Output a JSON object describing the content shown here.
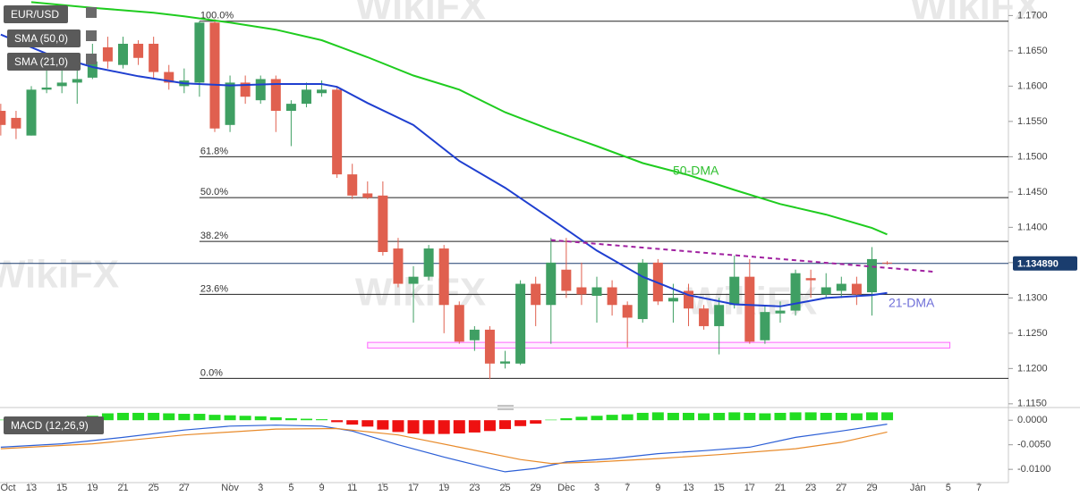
{
  "chart_data": [
    {
      "type": "candlestick",
      "name": "EUR/USD",
      "watermark": "WikiFX",
      "up_color": "#3f9f63",
      "down_color": "#e0604f",
      "x": [
        -2,
        -1,
        0,
        1,
        2,
        3,
        4,
        5,
        6,
        7,
        8,
        9,
        10,
        11,
        12,
        13,
        14,
        15,
        16,
        17,
        18,
        19,
        20,
        21,
        22,
        23,
        24,
        25,
        26,
        27,
        28,
        29,
        30,
        31,
        32,
        33,
        34,
        35,
        36,
        37,
        38,
        39,
        40,
        41,
        42,
        43,
        44,
        45,
        46,
        47,
        48,
        49,
        50,
        51,
        52,
        53,
        54,
        55,
        56
      ],
      "open": [
        1.1565,
        1.1555,
        1.153,
        1.1595,
        1.16,
        1.1605,
        1.1612,
        1.1655,
        1.163,
        1.166,
        1.166,
        1.162,
        1.16,
        1.1605,
        1.169,
        1.1545,
        1.1605,
        1.158,
        1.161,
        1.1565,
        1.1575,
        1.159,
        1.1595,
        1.1475,
        1.1448,
        1.1445,
        1.137,
        1.132,
        1.133,
        1.137,
        1.129,
        1.124,
        1.1255,
        1.1207,
        1.1207,
        1.132,
        1.129,
        1.134,
        1.1315,
        1.1303,
        1.1315,
        1.129,
        1.127,
        1.135,
        1.1295,
        1.131,
        1.1285,
        1.126,
        1.129,
        1.133,
        1.124,
        1.1278,
        1.1282,
        1.1328,
        1.1305,
        1.131,
        1.132,
        1.1308,
        1.135
      ],
      "high": [
        1.1575,
        1.1565,
        1.16,
        1.1625,
        1.1625,
        1.1625,
        1.166,
        1.167,
        1.167,
        1.1665,
        1.167,
        1.163,
        1.1625,
        1.1692,
        1.1695,
        1.1615,
        1.1615,
        1.1615,
        1.1615,
        1.158,
        1.1605,
        1.1608,
        1.16,
        1.149,
        1.1465,
        1.1465,
        1.1385,
        1.1345,
        1.1375,
        1.1375,
        1.1295,
        1.126,
        1.126,
        1.1225,
        1.1325,
        1.133,
        1.1385,
        1.1385,
        1.135,
        1.133,
        1.1325,
        1.1295,
        1.1355,
        1.1355,
        1.132,
        1.132,
        1.129,
        1.13,
        1.136,
        1.1355,
        1.129,
        1.1295,
        1.134,
        1.134,
        1.1335,
        1.133,
        1.133,
        1.1372,
        1.1352
      ],
      "low": [
        1.153,
        1.1525,
        1.153,
        1.159,
        1.159,
        1.1575,
        1.161,
        1.1625,
        1.1625,
        1.163,
        1.161,
        1.1595,
        1.159,
        1.1585,
        1.1535,
        1.1535,
        1.1575,
        1.1575,
        1.1535,
        1.1515,
        1.157,
        1.1585,
        1.147,
        1.144,
        1.144,
        1.136,
        1.1315,
        1.1265,
        1.1325,
        1.125,
        1.1235,
        1.1225,
        1.1185,
        1.12,
        1.1205,
        1.126,
        1.1235,
        1.13,
        1.129,
        1.1265,
        1.1275,
        1.123,
        1.1265,
        1.129,
        1.1265,
        1.126,
        1.1255,
        1.122,
        1.1285,
        1.1235,
        1.1235,
        1.1265,
        1.1275,
        1.13,
        1.13,
        1.13,
        1.129,
        1.1275,
        1.1347
      ],
      "close": [
        1.1545,
        1.154,
        1.1595,
        1.1598,
        1.1605,
        1.161,
        1.1635,
        1.1635,
        1.166,
        1.164,
        1.162,
        1.1605,
        1.1608,
        1.169,
        1.154,
        1.1605,
        1.1585,
        1.161,
        1.1565,
        1.1575,
        1.1595,
        1.1595,
        1.1475,
        1.1445,
        1.1442,
        1.1365,
        1.132,
        1.133,
        1.137,
        1.129,
        1.1238,
        1.1255,
        1.1207,
        1.121,
        1.132,
        1.129,
        1.135,
        1.131,
        1.1305,
        1.1315,
        1.129,
        1.1272,
        1.135,
        1.1295,
        1.13,
        1.1285,
        1.126,
        1.129,
        1.133,
        1.1238,
        1.128,
        1.1282,
        1.1335,
        1.1325,
        1.1315,
        1.132,
        1.1305,
        1.1355,
        1.1349
      ],
      "lines": [
        {
          "name": "SMA (50,0)",
          "color": "#1fcc1f",
          "x": [
            0,
            4,
            8,
            10,
            13,
            16,
            19,
            22,
            25,
            28,
            31,
            34,
            37,
            40,
            43,
            46,
            49,
            52,
            55,
            56
          ],
          "values": [
            1.1719,
            1.1711,
            1.1704,
            1.1699,
            1.169,
            1.168,
            1.1665,
            1.1641,
            1.1615,
            1.1595,
            1.1563,
            1.1538,
            1.1515,
            1.1491,
            1.1474,
            1.1453,
            1.1433,
            1.1418,
            1.1399,
            1.139
          ]
        },
        {
          "name": "SMA (21,0)",
          "color": "#1f3fd0",
          "x": [
            -2,
            1,
            4,
            7,
            10,
            13,
            16,
            19,
            20,
            22,
            25,
            28,
            31,
            34,
            37,
            40,
            43,
            46,
            49,
            52,
            55,
            56
          ],
          "values": [
            1.1673,
            1.1646,
            1.1627,
            1.1614,
            1.1604,
            1.1601,
            1.1603,
            1.1603,
            1.1599,
            1.1576,
            1.1545,
            1.1494,
            1.1456,
            1.1412,
            1.1367,
            1.133,
            1.1304,
            1.1291,
            1.1288,
            1.13,
            1.1304,
            1.1307
          ]
        }
      ],
      "level_start": 11,
      "levels": [
        {
          "value": 1.1692,
          "label": "100.0%"
        },
        {
          "value": 1.15,
          "label": "61.8%"
        },
        {
          "value": 1.1442,
          "label": "50.0%"
        },
        {
          "value": 1.138,
          "label": "38.2%"
        },
        {
          "value": 1.1305,
          "label": "23.6%"
        },
        {
          "value": 1.1186,
          "label": "0.0%"
        }
      ],
      "trendline": {
        "color": "#a020a0",
        "x": [
          34,
          59.1
        ],
        "values": [
          1.1382,
          1.1337
        ]
      },
      "zone": {
        "color": "#ff66ff",
        "x": [
          22,
          60.1
        ],
        "values": [
          1.1229,
          1.1237
        ]
      },
      "last_price": {
        "value": 1.13489,
        "label": "1.134890"
      },
      "annotations": [
        {
          "text": "50-DMA",
          "color": "#2fbf2f"
        },
        {
          "text": "21-DMA",
          "color": "#6f6fd8"
        }
      ],
      "xlim": [
        -2.05,
        63.93
      ],
      "ylim": [
        1.1146,
        1.1722
      ],
      "xticks": [
        {
          "value": -1.6,
          "label": "Oct"
        },
        {
          "value": 0,
          "label": "13"
        },
        {
          "value": 2,
          "label": "15"
        },
        {
          "value": 4,
          "label": "19"
        },
        {
          "value": 6,
          "label": "21"
        },
        {
          "value": 8,
          "label": "25"
        },
        {
          "value": 10,
          "label": "27"
        },
        {
          "value": 13,
          "label": "Nov"
        },
        {
          "value": 15,
          "label": "3"
        },
        {
          "value": 17,
          "label": "5"
        },
        {
          "value": 19,
          "label": "9"
        },
        {
          "value": 21,
          "label": "11"
        },
        {
          "value": 23,
          "label": "15"
        },
        {
          "value": 25,
          "label": "17"
        },
        {
          "value": 27,
          "label": "19"
        },
        {
          "value": 29,
          "label": "23"
        },
        {
          "value": 31,
          "label": "25"
        },
        {
          "value": 33,
          "label": "29"
        },
        {
          "value": 35,
          "label": "Dec"
        },
        {
          "value": 37,
          "label": "3"
        },
        {
          "value": 39,
          "label": "7"
        },
        {
          "value": 41,
          "label": "9"
        },
        {
          "value": 43,
          "label": "13"
        },
        {
          "value": 45,
          "label": "15"
        },
        {
          "value": 47,
          "label": "17"
        },
        {
          "value": 49,
          "label": "21"
        },
        {
          "value": 51,
          "label": "23"
        },
        {
          "value": 53,
          "label": "27"
        },
        {
          "value": 55,
          "label": "29"
        },
        {
          "value": 58,
          "label": "Jan"
        },
        {
          "value": 60,
          "label": "5"
        },
        {
          "value": 62,
          "label": "7"
        }
      ],
      "yticks": [
        {
          "value": 1.115,
          "label": "1.1150"
        },
        {
          "value": 1.12,
          "label": "1.1200"
        },
        {
          "value": 1.125,
          "label": "1.1250"
        },
        {
          "value": 1.13,
          "label": "1.1300"
        },
        {
          "value": 1.135,
          "label": "1.1350"
        },
        {
          "value": 1.14,
          "label": "1.1400"
        },
        {
          "value": 1.145,
          "label": "1.1450"
        },
        {
          "value": 1.15,
          "label": "1.1500"
        },
        {
          "value": 1.155,
          "label": "1.1550"
        },
        {
          "value": 1.16,
          "label": "1.1600"
        },
        {
          "value": 1.165,
          "label": "1.1650"
        },
        {
          "value": 1.17,
          "label": "1.1700"
        }
      ]
    },
    {
      "type": "macd",
      "name": "MACD (12,26,9)",
      "pos_color": "#22dd22",
      "neg_color": "#ee1111",
      "x": [
        -2,
        -1,
        0,
        1,
        2,
        3,
        4,
        5,
        6,
        7,
        8,
        9,
        10,
        11,
        12,
        13,
        14,
        15,
        16,
        17,
        18,
        19,
        20,
        21,
        22,
        23,
        24,
        25,
        26,
        27,
        28,
        29,
        30,
        31,
        32,
        33,
        34,
        35,
        36,
        37,
        38,
        39,
        40,
        41,
        42,
        43,
        44,
        45,
        46,
        47,
        48,
        49,
        50,
        51,
        52,
        53,
        54,
        55,
        56
      ],
      "histogram": [
        0.0001,
        0.0001,
        0.0002,
        0.0003,
        0.0004,
        0.0006,
        0.0009,
        0.0014,
        0.0015,
        0.0015,
        0.0015,
        0.0014,
        0.0013,
        0.0013,
        0.0011,
        0.001,
        0.0009,
        0.0008,
        0.0006,
        0.0004,
        0.0003,
        0.0002,
        -0.0004,
        -0.0009,
        -0.0013,
        -0.0019,
        -0.0024,
        -0.0027,
        -0.0028,
        -0.0028,
        -0.0027,
        -0.0025,
        -0.0022,
        -0.0018,
        -0.0012,
        -0.0007,
        0.0001,
        0.0004,
        0.0007,
        0.0009,
        0.0011,
        0.0012,
        0.0015,
        0.0016,
        0.0015,
        0.0015,
        0.0014,
        0.0015,
        0.0016,
        0.0015,
        0.0014,
        0.0015,
        0.0016,
        0.0016,
        0.0015,
        0.0015,
        0.0014,
        0.0016,
        0.0016
      ],
      "lines": [
        {
          "color": "#2c5fd6",
          "x": [
            -2,
            2,
            6,
            10,
            13,
            16,
            19,
            21,
            24,
            27,
            30,
            31,
            33,
            35,
            38,
            41,
            44,
            47,
            50,
            53,
            56
          ],
          "values": [
            -0.0055,
            -0.0048,
            -0.0035,
            -0.002,
            -0.0012,
            -0.001,
            -0.0012,
            -0.0022,
            -0.005,
            -0.0075,
            -0.0098,
            -0.0105,
            -0.0098,
            -0.0085,
            -0.0078,
            -0.0068,
            -0.0062,
            -0.0055,
            -0.0035,
            -0.0022,
            -0.0008
          ]
        },
        {
          "color": "#e88a2a",
          "x": [
            -2,
            4,
            10,
            16,
            20,
            24,
            28,
            32,
            34,
            37,
            41,
            45,
            50,
            53,
            56
          ],
          "values": [
            -0.0058,
            -0.0048,
            -0.003,
            -0.0018,
            -0.0017,
            -0.003,
            -0.0055,
            -0.008,
            -0.0088,
            -0.0085,
            -0.0078,
            -0.007,
            -0.0058,
            -0.0045,
            -0.0024
          ]
        }
      ],
      "ylim": [
        -0.0127,
        0.0024
      ],
      "yticks": [
        {
          "value": 0,
          "label": "0.0000"
        },
        {
          "value": -0.005,
          "label": "-0.0050"
        },
        {
          "value": -0.01,
          "label": "-0.0100"
        }
      ]
    }
  ]
}
